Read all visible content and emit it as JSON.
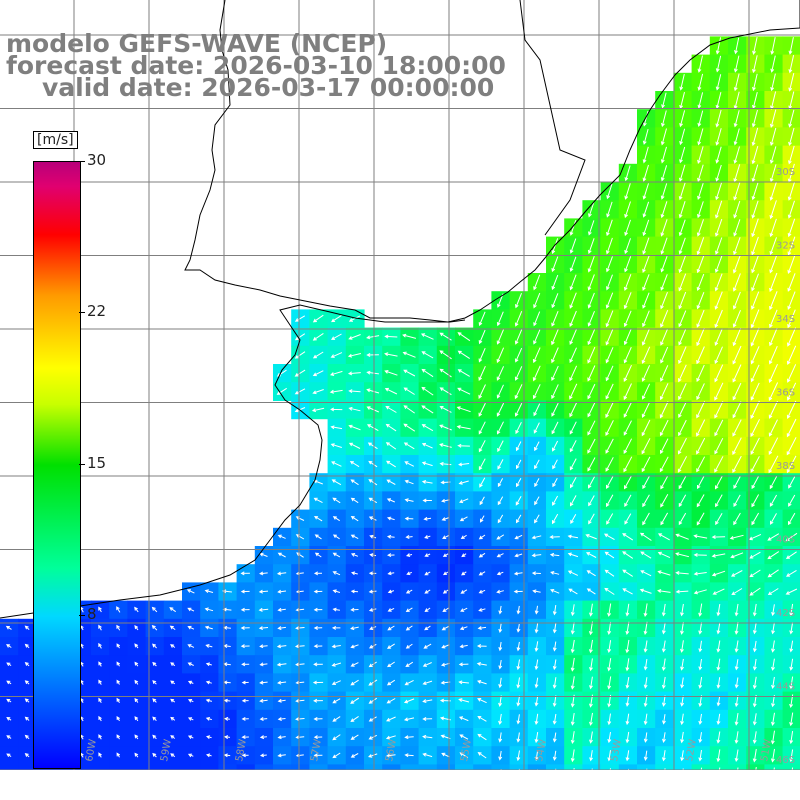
{
  "header": {
    "model": "modelo GEFS-WAVE (NCEP)",
    "forecast_date": "forecast date: 2026-03-10 18:00:00",
    "valid_date": "valid date: 2026-03-17 00:00:00"
  },
  "colorbar": {
    "unit": "[m/s]",
    "ticks": [
      "30",
      "22",
      "15",
      "8"
    ],
    "colors": [
      "#0000ff",
      "#0078ff",
      "#00d8ff",
      "#00ff9a",
      "#00e000",
      "#c8ff00",
      "#ffff00",
      "#ff9a00",
      "#ff0000",
      "#b8007a"
    ]
  },
  "map": {
    "lat_labels": [
      "30S",
      "32S",
      "34S",
      "36S",
      "38S",
      "40S",
      "42S",
      "44S",
      "46S"
    ],
    "lon_labels": [
      "60W",
      "59W",
      "58W",
      "57W",
      "56W",
      "55W",
      "54W",
      "53W",
      "52W",
      "51W"
    ],
    "land_color": "#ffffff",
    "grid_color": "#7f7f7f"
  }
}
